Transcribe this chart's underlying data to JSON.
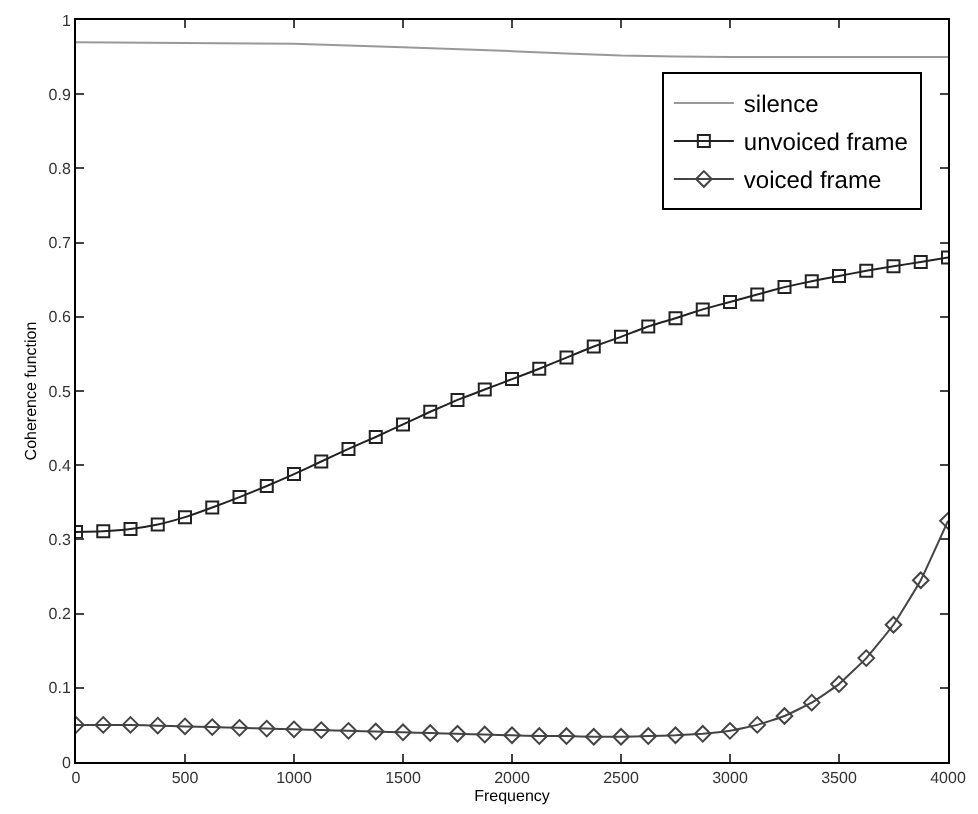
{
  "chart_data": {
    "type": "line",
    "xlabel": "Frequency",
    "ylabel": "Coherence function",
    "xlim": [
      0,
      4000
    ],
    "ylim": [
      0,
      1
    ],
    "xticks": [
      0,
      500,
      1000,
      1500,
      2000,
      2500,
      3000,
      3500,
      4000
    ],
    "yticks": [
      0,
      0.1,
      0.2,
      0.3,
      0.4,
      0.5,
      0.6,
      0.7,
      0.8,
      0.9,
      1
    ],
    "legend": "top right",
    "series": [
      {
        "name": "silence",
        "color": "#999999",
        "marker": "none",
        "x": [
          0,
          1000,
          2000,
          2500,
          3000,
          4000
        ],
        "values": [
          0.97,
          0.968,
          0.958,
          0.952,
          0.95,
          0.95
        ]
      },
      {
        "name": "unvoiced frame",
        "color": "#222222",
        "marker": "square",
        "x": [
          0,
          125,
          250,
          375,
          500,
          625,
          750,
          875,
          1000,
          1125,
          1250,
          1375,
          1500,
          1625,
          1750,
          1875,
          2000,
          2125,
          2250,
          2375,
          2500,
          2625,
          2750,
          2875,
          3000,
          3125,
          3250,
          3375,
          3500,
          3625,
          3750,
          3875,
          4000
        ],
        "values": [
          0.31,
          0.311,
          0.314,
          0.32,
          0.33,
          0.343,
          0.357,
          0.372,
          0.388,
          0.405,
          0.422,
          0.438,
          0.455,
          0.472,
          0.488,
          0.502,
          0.516,
          0.53,
          0.545,
          0.56,
          0.573,
          0.587,
          0.598,
          0.61,
          0.62,
          0.63,
          0.64,
          0.648,
          0.655,
          0.662,
          0.668,
          0.674,
          0.68
        ]
      },
      {
        "name": "voiced frame",
        "color": "#444444",
        "marker": "diamond",
        "x": [
          0,
          125,
          250,
          375,
          500,
          625,
          750,
          875,
          1000,
          1125,
          1250,
          1375,
          1500,
          1625,
          1750,
          1875,
          2000,
          2125,
          2250,
          2375,
          2500,
          2625,
          2750,
          2875,
          3000,
          3125,
          3250,
          3375,
          3500,
          3625,
          3750,
          3875,
          4000
        ],
        "values": [
          0.05,
          0.05,
          0.05,
          0.049,
          0.048,
          0.047,
          0.046,
          0.045,
          0.044,
          0.043,
          0.042,
          0.041,
          0.04,
          0.039,
          0.038,
          0.037,
          0.036,
          0.035,
          0.035,
          0.034,
          0.034,
          0.035,
          0.036,
          0.038,
          0.042,
          0.05,
          0.062,
          0.08,
          0.105,
          0.14,
          0.185,
          0.245,
          0.325
        ]
      }
    ]
  }
}
